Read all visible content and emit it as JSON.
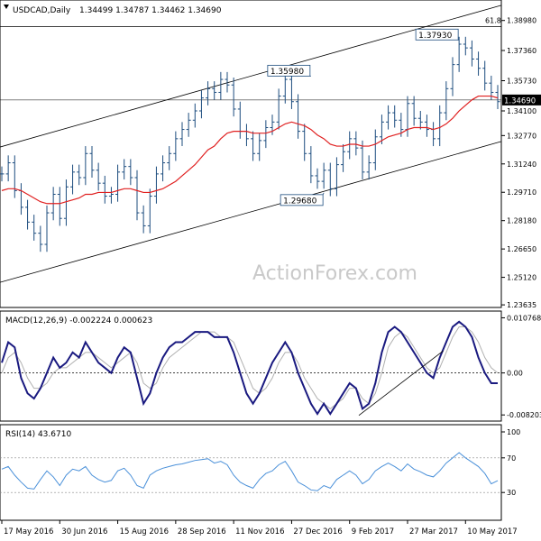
{
  "chart_data": {
    "type": "line",
    "title": "USDCAD,Daily",
    "ohlc": [
      "1.34499",
      "1.34787",
      "1.34462",
      "1.34690"
    ],
    "watermark": "ActionForex.com",
    "price_panel": {
      "ylim": [
        1.2364,
        1.3989
      ],
      "ticks": [
        "1.38980",
        "1.37360",
        "1.35730",
        "1.34100",
        "1.32770",
        "1.31240",
        "1.29710",
        "1.28180",
        "1.26650",
        "1.25120",
        "1.23635"
      ],
      "current_price": "1.34690",
      "current_value": 1.3469,
      "fib_label": "61.8",
      "fib_level": 1.3865,
      "annotations": [
        {
          "label": "1.35980",
          "value": 1.3598
        },
        {
          "label": "1.37930",
          "value": 1.3793
        },
        {
          "label": "1.29680",
          "value": 1.2968
        }
      ],
      "channel": {
        "upper": [
          [
            0,
            1.3215
          ],
          [
            1,
            1.398
          ]
        ],
        "lower": [
          [
            0,
            1.2485
          ],
          [
            1,
            1.3245
          ]
        ]
      },
      "series": [
        {
          "kind": "ohlc",
          "color": "#1c4c7e",
          "closes": [
            1.307,
            1.313,
            1.298,
            1.289,
            1.281,
            1.275,
            1.269,
            1.286,
            1.296,
            1.283,
            1.3,
            1.308,
            1.305,
            1.318,
            1.309,
            1.302,
            1.295,
            1.296,
            1.308,
            1.311,
            1.305,
            1.286,
            1.279,
            1.295,
            1.307,
            1.313,
            1.318,
            1.326,
            1.331,
            1.336,
            1.341,
            1.348,
            1.353,
            1.351,
            1.358,
            1.355,
            1.342,
            1.33,
            1.326,
            1.318,
            1.325,
            1.332,
            1.335,
            1.349,
            1.358,
            1.346,
            1.33,
            1.318,
            1.306,
            1.303,
            1.309,
            1.299,
            1.312,
            1.319,
            1.326,
            1.321,
            1.308,
            1.313,
            1.327,
            1.335,
            1.34,
            1.336,
            1.331,
            1.345,
            1.337,
            1.335,
            1.331,
            1.326,
            1.34,
            1.353,
            1.366,
            1.377,
            1.375,
            1.369,
            1.364,
            1.356,
            1.351,
            1.346
          ]
        },
        {
          "kind": "ma",
          "color": "#e02020",
          "values": [
            1.298,
            1.299,
            1.299,
            1.298,
            1.296,
            1.294,
            1.292,
            1.291,
            1.291,
            1.291,
            1.292,
            1.293,
            1.294,
            1.296,
            1.296,
            1.297,
            1.297,
            1.297,
            1.298,
            1.299,
            1.299,
            1.298,
            1.297,
            1.297,
            1.298,
            1.299,
            1.301,
            1.303,
            1.306,
            1.309,
            1.312,
            1.316,
            1.32,
            1.322,
            1.326,
            1.329,
            1.33,
            1.33,
            1.33,
            1.329,
            1.329,
            1.329,
            1.33,
            1.332,
            1.334,
            1.335,
            1.334,
            1.333,
            1.331,
            1.328,
            1.326,
            1.323,
            1.322,
            1.322,
            1.323,
            1.323,
            1.322,
            1.322,
            1.323,
            1.325,
            1.327,
            1.328,
            1.329,
            1.331,
            1.332,
            1.332,
            1.332,
            1.331,
            1.332,
            1.334,
            1.337,
            1.341,
            1.344,
            1.347,
            1.349,
            1.349,
            1.349,
            1.348
          ]
        }
      ]
    },
    "macd_panel": {
      "label": "MACD(12,26,9) -0.002224 0.000623",
      "ylim": [
        -0.0087,
        0.0112
      ],
      "ticks": [
        "0.010768",
        "0.00",
        "-0.008203"
      ],
      "zero": 0,
      "series": [
        {
          "kind": "macd",
          "color": "#1a1a80",
          "values": [
            0.002,
            0.006,
            0.005,
            -0.001,
            -0.004,
            -0.005,
            -0.003,
            0.0,
            0.003,
            0.001,
            0.002,
            0.004,
            0.003,
            0.006,
            0.004,
            0.002,
            0.001,
            0.0,
            0.003,
            0.005,
            0.004,
            -0.001,
            -0.006,
            -0.004,
            0.0,
            0.003,
            0.005,
            0.006,
            0.006,
            0.007,
            0.008,
            0.008,
            0.008,
            0.007,
            0.007,
            0.007,
            0.004,
            0.0,
            -0.004,
            -0.006,
            -0.004,
            -0.001,
            0.002,
            0.004,
            0.006,
            0.004,
            0.0,
            -0.003,
            -0.006,
            -0.008,
            -0.006,
            -0.008,
            -0.006,
            -0.004,
            -0.002,
            -0.003,
            -0.007,
            -0.006,
            -0.002,
            0.004,
            0.008,
            0.009,
            0.008,
            0.006,
            0.004,
            0.002,
            0.0,
            -0.001,
            0.003,
            0.006,
            0.009,
            0.01,
            0.009,
            0.007,
            0.003,
            0.0,
            -0.002,
            -0.002
          ]
        },
        {
          "kind": "signal",
          "color": "#b0b0b0",
          "values": [
            0.0,
            0.003,
            0.004,
            0.002,
            -0.001,
            -0.003,
            -0.003,
            -0.002,
            0.0,
            0.001,
            0.001,
            0.002,
            0.003,
            0.004,
            0.004,
            0.003,
            0.002,
            0.001,
            0.002,
            0.003,
            0.004,
            0.002,
            -0.002,
            -0.003,
            -0.002,
            0.001,
            0.003,
            0.004,
            0.005,
            0.006,
            0.007,
            0.008,
            0.008,
            0.008,
            0.007,
            0.007,
            0.006,
            0.003,
            0.0,
            -0.003,
            -0.004,
            -0.003,
            -0.001,
            0.002,
            0.004,
            0.004,
            0.002,
            -0.001,
            -0.003,
            -0.005,
            -0.006,
            -0.007,
            -0.006,
            -0.005,
            -0.003,
            -0.003,
            -0.005,
            -0.006,
            -0.004,
            0.0,
            0.005,
            0.007,
            0.008,
            0.007,
            0.005,
            0.003,
            0.001,
            0.0,
            0.001,
            0.004,
            0.007,
            0.009,
            0.009,
            0.008,
            0.006,
            0.003,
            0.001,
            0.0
          ]
        }
      ],
      "trendline": [
        [
          0.72,
          -0.0083
        ],
        [
          0.89,
          0.0043
        ]
      ]
    },
    "rsi_panel": {
      "label": "RSI(14) 43.6710",
      "ylim": [
        0,
        100
      ],
      "ticks": [
        "100",
        "70",
        "30",
        "0"
      ],
      "levels": [
        70,
        30
      ],
      "series": [
        {
          "kind": "rsi",
          "color": "#4a90d9",
          "values": [
            57,
            60,
            50,
            42,
            35,
            34,
            45,
            55,
            48,
            38,
            50,
            57,
            55,
            60,
            50,
            45,
            42,
            44,
            55,
            58,
            50,
            38,
            35,
            50,
            55,
            58,
            60,
            62,
            63,
            65,
            67,
            68,
            69,
            64,
            66,
            62,
            50,
            42,
            38,
            35,
            45,
            52,
            55,
            62,
            66,
            55,
            42,
            38,
            33,
            32,
            38,
            35,
            45,
            50,
            55,
            50,
            40,
            45,
            55,
            60,
            64,
            60,
            55,
            63,
            57,
            54,
            50,
            48,
            55,
            64,
            70,
            76,
            70,
            65,
            60,
            52,
            40,
            43.67
          ]
        }
      ]
    },
    "x_tick_labels": [
      "17 May 2016",
      "30 Jun 2016",
      "15 Aug 2016",
      "28 Sep 2016",
      "11 Nov 2016",
      "27 Dec 2016",
      "9 Feb 2017",
      "27 Mar 2017",
      "10 May 2017"
    ],
    "x_tick_index": [
      0,
      9,
      18,
      27,
      36,
      45,
      54,
      63,
      72
    ],
    "n_points": 78
  }
}
